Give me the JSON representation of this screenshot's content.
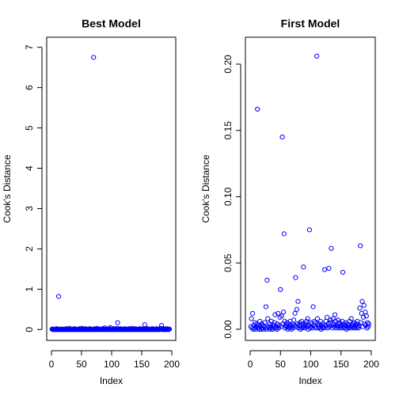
{
  "chart_data": [
    {
      "type": "scatter",
      "title": "Best Model",
      "xlabel": "Index",
      "ylabel": "Cook's Distance",
      "color": "#0000ff",
      "xlim": [
        -7.9,
        206.6
      ],
      "xticks": [
        0,
        50,
        100,
        150,
        200
      ],
      "ylim": [
        -0.27,
        7.25
      ],
      "yticks": [
        0,
        1,
        2,
        3,
        4,
        5,
        6,
        7
      ],
      "x": [
        1,
        2,
        3,
        4,
        5,
        6,
        7,
        8,
        9,
        10,
        11,
        12,
        13,
        14,
        15,
        16,
        17,
        18,
        19,
        20,
        21,
        22,
        23,
        24,
        25,
        26,
        27,
        28,
        29,
        30,
        31,
        32,
        33,
        34,
        35,
        36,
        37,
        38,
        39,
        40,
        41,
        42,
        43,
        44,
        45,
        46,
        47,
        48,
        49,
        50,
        51,
        52,
        53,
        54,
        55,
        56,
        57,
        58,
        59,
        60,
        61,
        62,
        63,
        64,
        65,
        66,
        67,
        68,
        69,
        70,
        71,
        72,
        73,
        74,
        75,
        76,
        77,
        78,
        79,
        80,
        81,
        82,
        83,
        84,
        85,
        86,
        87,
        88,
        89,
        90,
        91,
        92,
        93,
        94,
        95,
        96,
        97,
        98,
        99,
        100,
        101,
        102,
        103,
        104,
        105,
        106,
        107,
        108,
        109,
        110,
        111,
        112,
        113,
        114,
        115,
        116,
        117,
        118,
        119,
        120,
        121,
        122,
        123,
        124,
        125,
        126,
        127,
        128,
        129,
        130,
        131,
        132,
        133,
        134,
        135,
        136,
        137,
        138,
        139,
        140,
        141,
        142,
        143,
        144,
        145,
        146,
        147,
        148,
        149,
        150,
        151,
        152,
        153,
        154,
        155,
        156,
        157,
        158,
        159,
        160,
        161,
        162,
        163,
        164,
        165,
        166,
        167,
        168,
        169,
        170,
        171,
        172,
        173,
        174,
        175,
        176,
        177,
        178,
        179,
        180,
        181,
        182,
        183,
        184,
        185,
        186,
        187,
        188,
        189,
        190,
        191,
        192,
        193,
        194,
        195,
        196
      ],
      "values": [
        0.01,
        0,
        0.01,
        0,
        0,
        0.01,
        0,
        0,
        0.02,
        0,
        0,
        0.82,
        0,
        0.01,
        0,
        0,
        0.01,
        0,
        0,
        0.01,
        0,
        0.01,
        0,
        0,
        0.02,
        0,
        0.01,
        0,
        0,
        0.03,
        0,
        0,
        0.01,
        0,
        0,
        0.01,
        0,
        0.02,
        0,
        0,
        0.01,
        0,
        0,
        0.01,
        0,
        0,
        0.02,
        0,
        0,
        0.01,
        0.03,
        0,
        0.01,
        0,
        0,
        0.02,
        0,
        0,
        0.01,
        0,
        0,
        0.01,
        0,
        0.02,
        0,
        0,
        0.01,
        0,
        0,
        6.75,
        0,
        0.02,
        0,
        0.01,
        0,
        0.03,
        0,
        0,
        0.01,
        0,
        0,
        0.01,
        0,
        0,
        0.02,
        0,
        0.01,
        0,
        0.04,
        0,
        0.01,
        0,
        0,
        0.01,
        0,
        0.02,
        0,
        0.05,
        0,
        0,
        0.01,
        0,
        0,
        0.02,
        0,
        0.01,
        0,
        0,
        0.03,
        0.17,
        0,
        0.01,
        0,
        0,
        0.02,
        0,
        0.01,
        0,
        0,
        0.01,
        0,
        0.02,
        0,
        0.01,
        0,
        0,
        0.01,
        0,
        0.02,
        0,
        0.01,
        0,
        0,
        0.03,
        0,
        0.01,
        0,
        0,
        0.02,
        0,
        0,
        0.01,
        0,
        0,
        0.01,
        0,
        0.02,
        0,
        0,
        0.01,
        0,
        0.01,
        0,
        0,
        0.12,
        0,
        0.01,
        0,
        0,
        0.02,
        0,
        0.01,
        0,
        0,
        0.01,
        0,
        0,
        0.02,
        0,
        0.01,
        0,
        0,
        0.01,
        0,
        0.02,
        0,
        0,
        0.01,
        0,
        0,
        0.01,
        0.03,
        0.1,
        0,
        0.01,
        0,
        0.02,
        0,
        0,
        0.01,
        0,
        0.02,
        0,
        0.01,
        0,
        0.01
      ]
    },
    {
      "type": "scatter",
      "title": "First Model",
      "xlabel": "Index",
      "ylabel": "Cook's Distance",
      "color": "#0000ff",
      "xlim": [
        -7.9,
        206.6
      ],
      "xticks": [
        0,
        50,
        100,
        150,
        200
      ],
      "ylim": [
        -0.0084,
        0.2203
      ],
      "yticks": [
        {
          "value": 0,
          "label": "0.00"
        },
        {
          "value": 0.05,
          "label": "0.05"
        },
        {
          "value": 0.1,
          "label": "0.10"
        },
        {
          "value": 0.15,
          "label": "0.15"
        },
        {
          "value": 0.2,
          "label": "0.20"
        }
      ],
      "x": [
        1,
        2,
        3,
        4,
        5,
        6,
        7,
        8,
        9,
        10,
        11,
        12,
        13,
        14,
        15,
        16,
        17,
        18,
        19,
        20,
        21,
        22,
        23,
        24,
        25,
        26,
        27,
        28,
        29,
        30,
        31,
        32,
        33,
        34,
        35,
        36,
        37,
        38,
        39,
        40,
        41,
        42,
        43,
        44,
        45,
        46,
        47,
        48,
        49,
        50,
        51,
        52,
        53,
        54,
        55,
        56,
        57,
        58,
        59,
        60,
        61,
        62,
        63,
        64,
        65,
        66,
        67,
        68,
        69,
        70,
        71,
        72,
        73,
        74,
        75,
        76,
        77,
        78,
        79,
        80,
        81,
        82,
        83,
        84,
        85,
        86,
        87,
        88,
        89,
        90,
        91,
        92,
        93,
        94,
        95,
        96,
        97,
        98,
        99,
        100,
        101,
        102,
        103,
        104,
        105,
        106,
        107,
        108,
        109,
        110,
        111,
        112,
        113,
        114,
        115,
        116,
        117,
        118,
        119,
        120,
        121,
        122,
        123,
        124,
        125,
        126,
        127,
        128,
        129,
        130,
        131,
        132,
        133,
        134,
        135,
        136,
        137,
        138,
        139,
        140,
        141,
        142,
        143,
        144,
        145,
        146,
        147,
        148,
        149,
        150,
        151,
        152,
        153,
        154,
        155,
        156,
        157,
        158,
        159,
        160,
        161,
        162,
        163,
        164,
        165,
        166,
        167,
        168,
        169,
        170,
        171,
        172,
        173,
        174,
        175,
        176,
        177,
        178,
        179,
        180,
        181,
        182,
        183,
        184,
        185,
        186,
        187,
        188,
        189,
        190,
        191,
        192,
        193,
        194,
        195,
        196
      ],
      "values": [
        0.002,
        0.008,
        0.001,
        0.012,
        0,
        0.003,
        0.001,
        0.005,
        0,
        0.002,
        0.004,
        0.166,
        0.001,
        0.003,
        0,
        0.006,
        0.002,
        0,
        0.004,
        0.001,
        0.003,
        0,
        0.002,
        0.005,
        0.001,
        0.017,
        0,
        0.037,
        0.008,
        0.002,
        0.001,
        0.004,
        0,
        0.002,
        0.006,
        0.001,
        0,
        0.003,
        0.002,
        0.005,
        0.011,
        0.001,
        0.002,
        0,
        0.004,
        0.012,
        0.001,
        0.003,
        0.009,
        0.03,
        0.002,
        0.01,
        0.145,
        0.004,
        0.013,
        0.072,
        0.006,
        0.001,
        0.003,
        0.002,
        0.005,
        0,
        0.002,
        0.004,
        0.001,
        0.006,
        0.003,
        0,
        0.002,
        0.004,
        0.001,
        0.007,
        0.003,
        0.012,
        0.039,
        0.002,
        0.015,
        0.004,
        0.021,
        0.001,
        0.003,
        0.005,
        0,
        0.002,
        0.006,
        0.001,
        0.004,
        0.047,
        0.002,
        0.003,
        0.001,
        0.004,
        0.006,
        0.002,
        0.008,
        0,
        0.003,
        0.075,
        0.001,
        0.005,
        0.002,
        0.004,
        0.001,
        0.017,
        0.003,
        0.006,
        0.002,
        0.005,
        0.001,
        0.206,
        0.008,
        0.003,
        0.001,
        0.004,
        0.002,
        0.006,
        0,
        0.003,
        0.001,
        0.002,
        0.004,
        0.001,
        0.045,
        0.003,
        0.006,
        0.002,
        0.009,
        0.001,
        0.004,
        0.046,
        0.002,
        0.005,
        0.007,
        0.061,
        0.003,
        0.001,
        0.008,
        0.004,
        0.002,
        0.011,
        0.006,
        0.001,
        0.003,
        0.002,
        0.007,
        0.004,
        0.001,
        0.005,
        0.002,
        0.003,
        0.001,
        0.006,
        0.043,
        0.002,
        0.004,
        0.001,
        0.003,
        0.005,
        0,
        0.002,
        0.004,
        0.001,
        0.003,
        0.006,
        0.002,
        0.001,
        0.008,
        0.003,
        0.002,
        0.004,
        0.001,
        0.005,
        0.002,
        0.003,
        0.001,
        0.004,
        0.006,
        0.002,
        0.001,
        0.003,
        0.016,
        0.063,
        0.005,
        0.012,
        0.021,
        0.002,
        0.009,
        0.018,
        0.004,
        0.013,
        0.003,
        0.01,
        0.001,
        0.005,
        0.002,
        0.004
      ]
    }
  ]
}
